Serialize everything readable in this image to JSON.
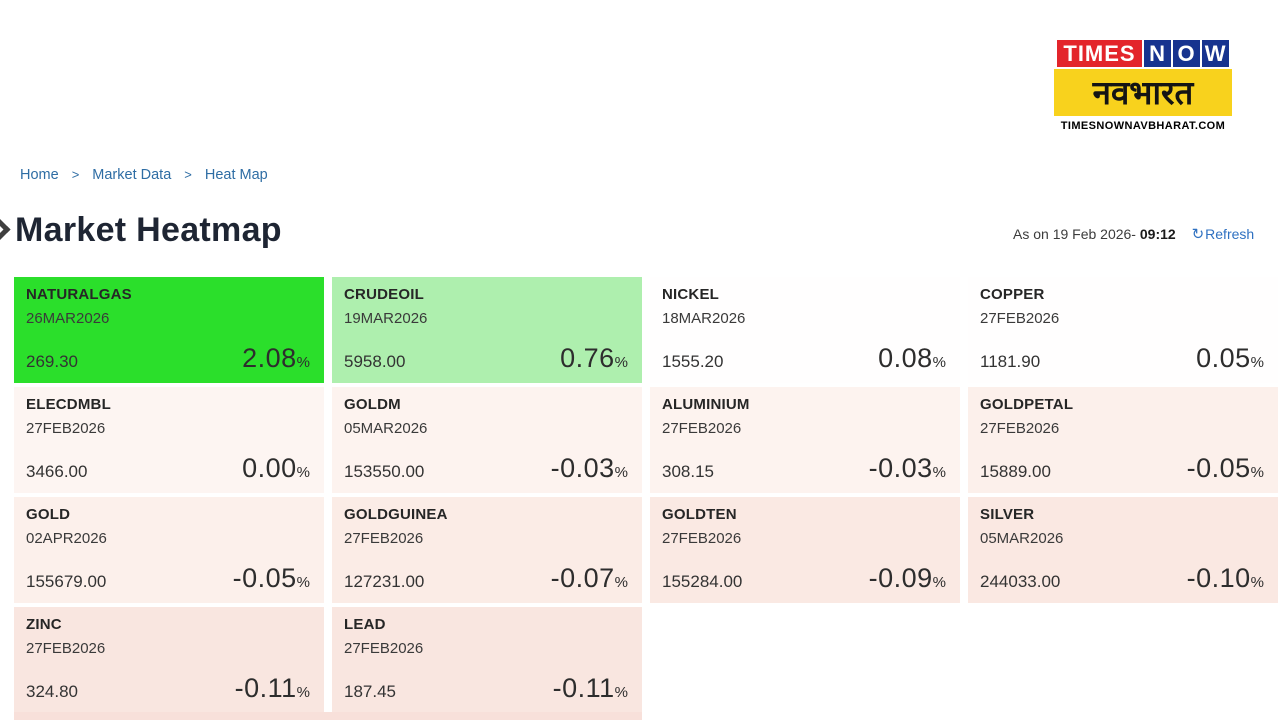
{
  "brand": {
    "times": "TIMES",
    "now_letters": [
      "N",
      "O",
      "W"
    ],
    "navbharat": "नवभारत",
    "site": "TIMESNOWNAVBHARAT.COM",
    "colors": {
      "red": "#e3252b",
      "blue": "#17338f",
      "yellow": "#f8d21d"
    }
  },
  "breadcrumb": {
    "separator": ">",
    "items": [
      "Home",
      "Market Data",
      "Heat Map"
    ]
  },
  "page": {
    "title": "Market Heatmap",
    "as_on_label": "As on 19 Feb 2026-",
    "as_on_time": "09:12",
    "refresh_icon": "↻",
    "refresh_label": "Refresh"
  },
  "heatmap": {
    "percent_sign": "%",
    "next_row_strip_color": "#f8e0da",
    "tiles": [
      {
        "symbol": "NATURALGAS",
        "expiry": "26MAR2026",
        "price": "269.30",
        "change": "2.08",
        "bg": "#2bdf2b"
      },
      {
        "symbol": "CRUDEOIL",
        "expiry": "19MAR2026",
        "price": "5958.00",
        "change": "0.76",
        "bg": "#aeefae"
      },
      {
        "symbol": "NICKEL",
        "expiry": "18MAR2026",
        "price": "1555.20",
        "change": "0.08",
        "bg": "#fffefe"
      },
      {
        "symbol": "COPPER",
        "expiry": "27FEB2026",
        "price": "1181.90",
        "change": "0.05",
        "bg": "#fffefe"
      },
      {
        "symbol": "ELECDMBL",
        "expiry": "27FEB2026",
        "price": "3466.00",
        "change": "0.00",
        "bg": "#fdf5f2"
      },
      {
        "symbol": "GOLDM",
        "expiry": "05MAR2026",
        "price": "153550.00",
        "change": "-0.03",
        "bg": "#fdf3ef"
      },
      {
        "symbol": "ALUMINIUM",
        "expiry": "27FEB2026",
        "price": "308.15",
        "change": "-0.03",
        "bg": "#fdf3ef"
      },
      {
        "symbol": "GOLDPETAL",
        "expiry": "27FEB2026",
        "price": "15889.00",
        "change": "-0.05",
        "bg": "#fcf0eb"
      },
      {
        "symbol": "GOLD",
        "expiry": "02APR2026",
        "price": "155679.00",
        "change": "-0.05",
        "bg": "#fcf0eb"
      },
      {
        "symbol": "GOLDGUINEA",
        "expiry": "27FEB2026",
        "price": "127231.00",
        "change": "-0.07",
        "bg": "#fbece6"
      },
      {
        "symbol": "GOLDTEN",
        "expiry": "27FEB2026",
        "price": "155284.00",
        "change": "-0.09",
        "bg": "#fae9e3"
      },
      {
        "symbol": "SILVER",
        "expiry": "05MAR2026",
        "price": "244033.00",
        "change": "-0.10",
        "bg": "#fae8e2"
      },
      {
        "symbol": "ZINC",
        "expiry": "27FEB2026",
        "price": "324.80",
        "change": "-0.11",
        "bg": "#f9e6e0"
      },
      {
        "symbol": "LEAD",
        "expiry": "27FEB2026",
        "price": "187.45",
        "change": "-0.11",
        "bg": "#f9e6e0"
      }
    ]
  }
}
